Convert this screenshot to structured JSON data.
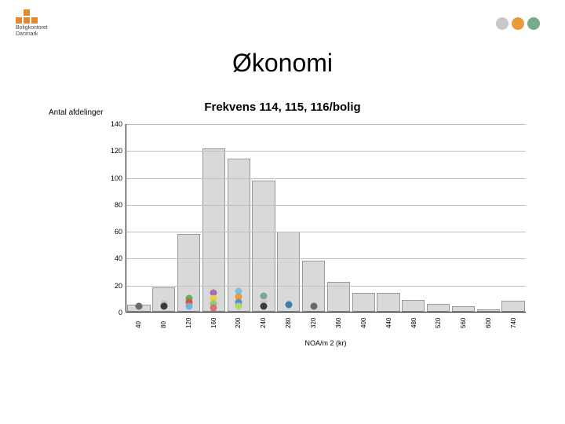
{
  "logo": {
    "line1": "Boligkontoret",
    "line2": "Danmark",
    "square_color": "#e08a2e"
  },
  "corner_dots": [
    "#c8c8c8",
    "#e89a3c",
    "#7aa88a"
  ],
  "title": "Økonomi",
  "subtitle": "Frekvens 114, 115, 116/bolig",
  "y_axis_label": "Antal afdelinger",
  "x_axis_label": "NOA/m 2 (kr)",
  "chart": {
    "type": "histogram",
    "ylim": [
      0,
      140
    ],
    "ytick_step": 20,
    "yticks": [
      0,
      20,
      40,
      60,
      80,
      100,
      120,
      140
    ],
    "xticks": [
      "40",
      "80",
      "120",
      "160",
      "200",
      "240",
      "280",
      "320",
      "360",
      "400",
      "440",
      "480",
      "520",
      "560",
      "600",
      "740"
    ],
    "bars": [
      5,
      18,
      58,
      122,
      114,
      98,
      60,
      38,
      22,
      14,
      14,
      9,
      6,
      4,
      2,
      8
    ],
    "bar_fill": "#d9d9d9",
    "bar_border": "#999999",
    "grid_color": "#bfbfbf",
    "background": "#ffffff",
    "markers": [
      {
        "bin": 0,
        "y": 4,
        "color": "#6b6b6b"
      },
      {
        "bin": 1,
        "y": 6,
        "color": "#c0c0c0"
      },
      {
        "bin": 1,
        "y": 4,
        "color": "#3a3a3a"
      },
      {
        "bin": 2,
        "y": 10,
        "color": "#6fa84f"
      },
      {
        "bin": 2,
        "y": 7,
        "color": "#d94f4f"
      },
      {
        "bin": 2,
        "y": 4,
        "color": "#6fb4d6"
      },
      {
        "bin": 3,
        "y": 14,
        "color": "#b267b2"
      },
      {
        "bin": 3,
        "y": 10,
        "color": "#e0d24a"
      },
      {
        "bin": 3,
        "y": 6,
        "color": "#89c97e"
      },
      {
        "bin": 3,
        "y": 3,
        "color": "#d96f6f"
      },
      {
        "bin": 4,
        "y": 15,
        "color": "#7fbfe0"
      },
      {
        "bin": 4,
        "y": 11,
        "color": "#e89a3c"
      },
      {
        "bin": 4,
        "y": 7,
        "color": "#5a8fd6"
      },
      {
        "bin": 4,
        "y": 4,
        "color": "#b2d66f"
      },
      {
        "bin": 5,
        "y": 12,
        "color": "#7aa88a"
      },
      {
        "bin": 5,
        "y": 7,
        "color": "#c8c8c8"
      },
      {
        "bin": 5,
        "y": 4,
        "color": "#3a3a3a"
      },
      {
        "bin": 6,
        "y": 5,
        "color": "#3c7ea8"
      },
      {
        "bin": 7,
        "y": 4,
        "color": "#6b6b6b"
      }
    ],
    "title_fontsize": 32,
    "subtitle_fontsize": 15,
    "tick_fontsize": 9
  }
}
